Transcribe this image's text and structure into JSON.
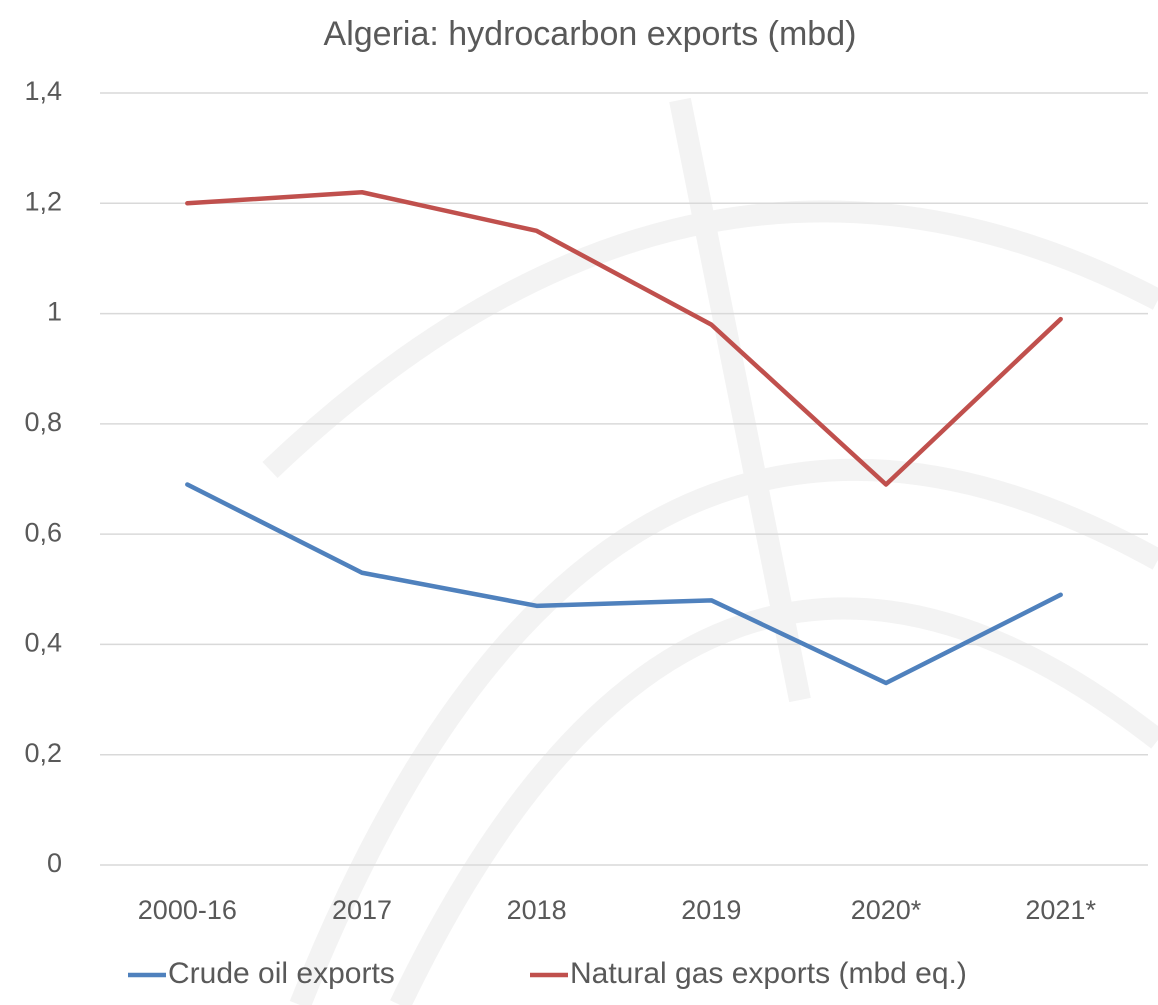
{
  "chart_data": {
    "type": "line",
    "title": "Algeria: hydrocarbon exports (mbd)",
    "categories": [
      "2000-16",
      "2017",
      "2018",
      "2019",
      "2020*",
      "2021*"
    ],
    "series": [
      {
        "name": "Crude oil exports",
        "color": "#4f81bd",
        "values": [
          0.69,
          0.53,
          0.47,
          0.48,
          0.33,
          0.49
        ]
      },
      {
        "name": "Natural gas exports (mbd eq.)",
        "color": "#c0504d",
        "values": [
          1.2,
          1.22,
          1.15,
          0.98,
          0.69,
          0.99
        ]
      }
    ],
    "ylim": [
      0,
      1.4
    ],
    "yticks": [
      0,
      {
        "value": 0.2,
        "label": "0,2"
      },
      {
        "value": 0.4,
        "label": "0,4"
      },
      {
        "value": 0.6,
        "label": "0,6"
      },
      {
        "value": 0.8,
        "label": "0,8"
      },
      1,
      {
        "value": 1.2,
        "label": "1,2"
      },
      {
        "value": 1.4,
        "label": "1,4"
      }
    ],
    "grid": true,
    "legend": "bottom"
  }
}
